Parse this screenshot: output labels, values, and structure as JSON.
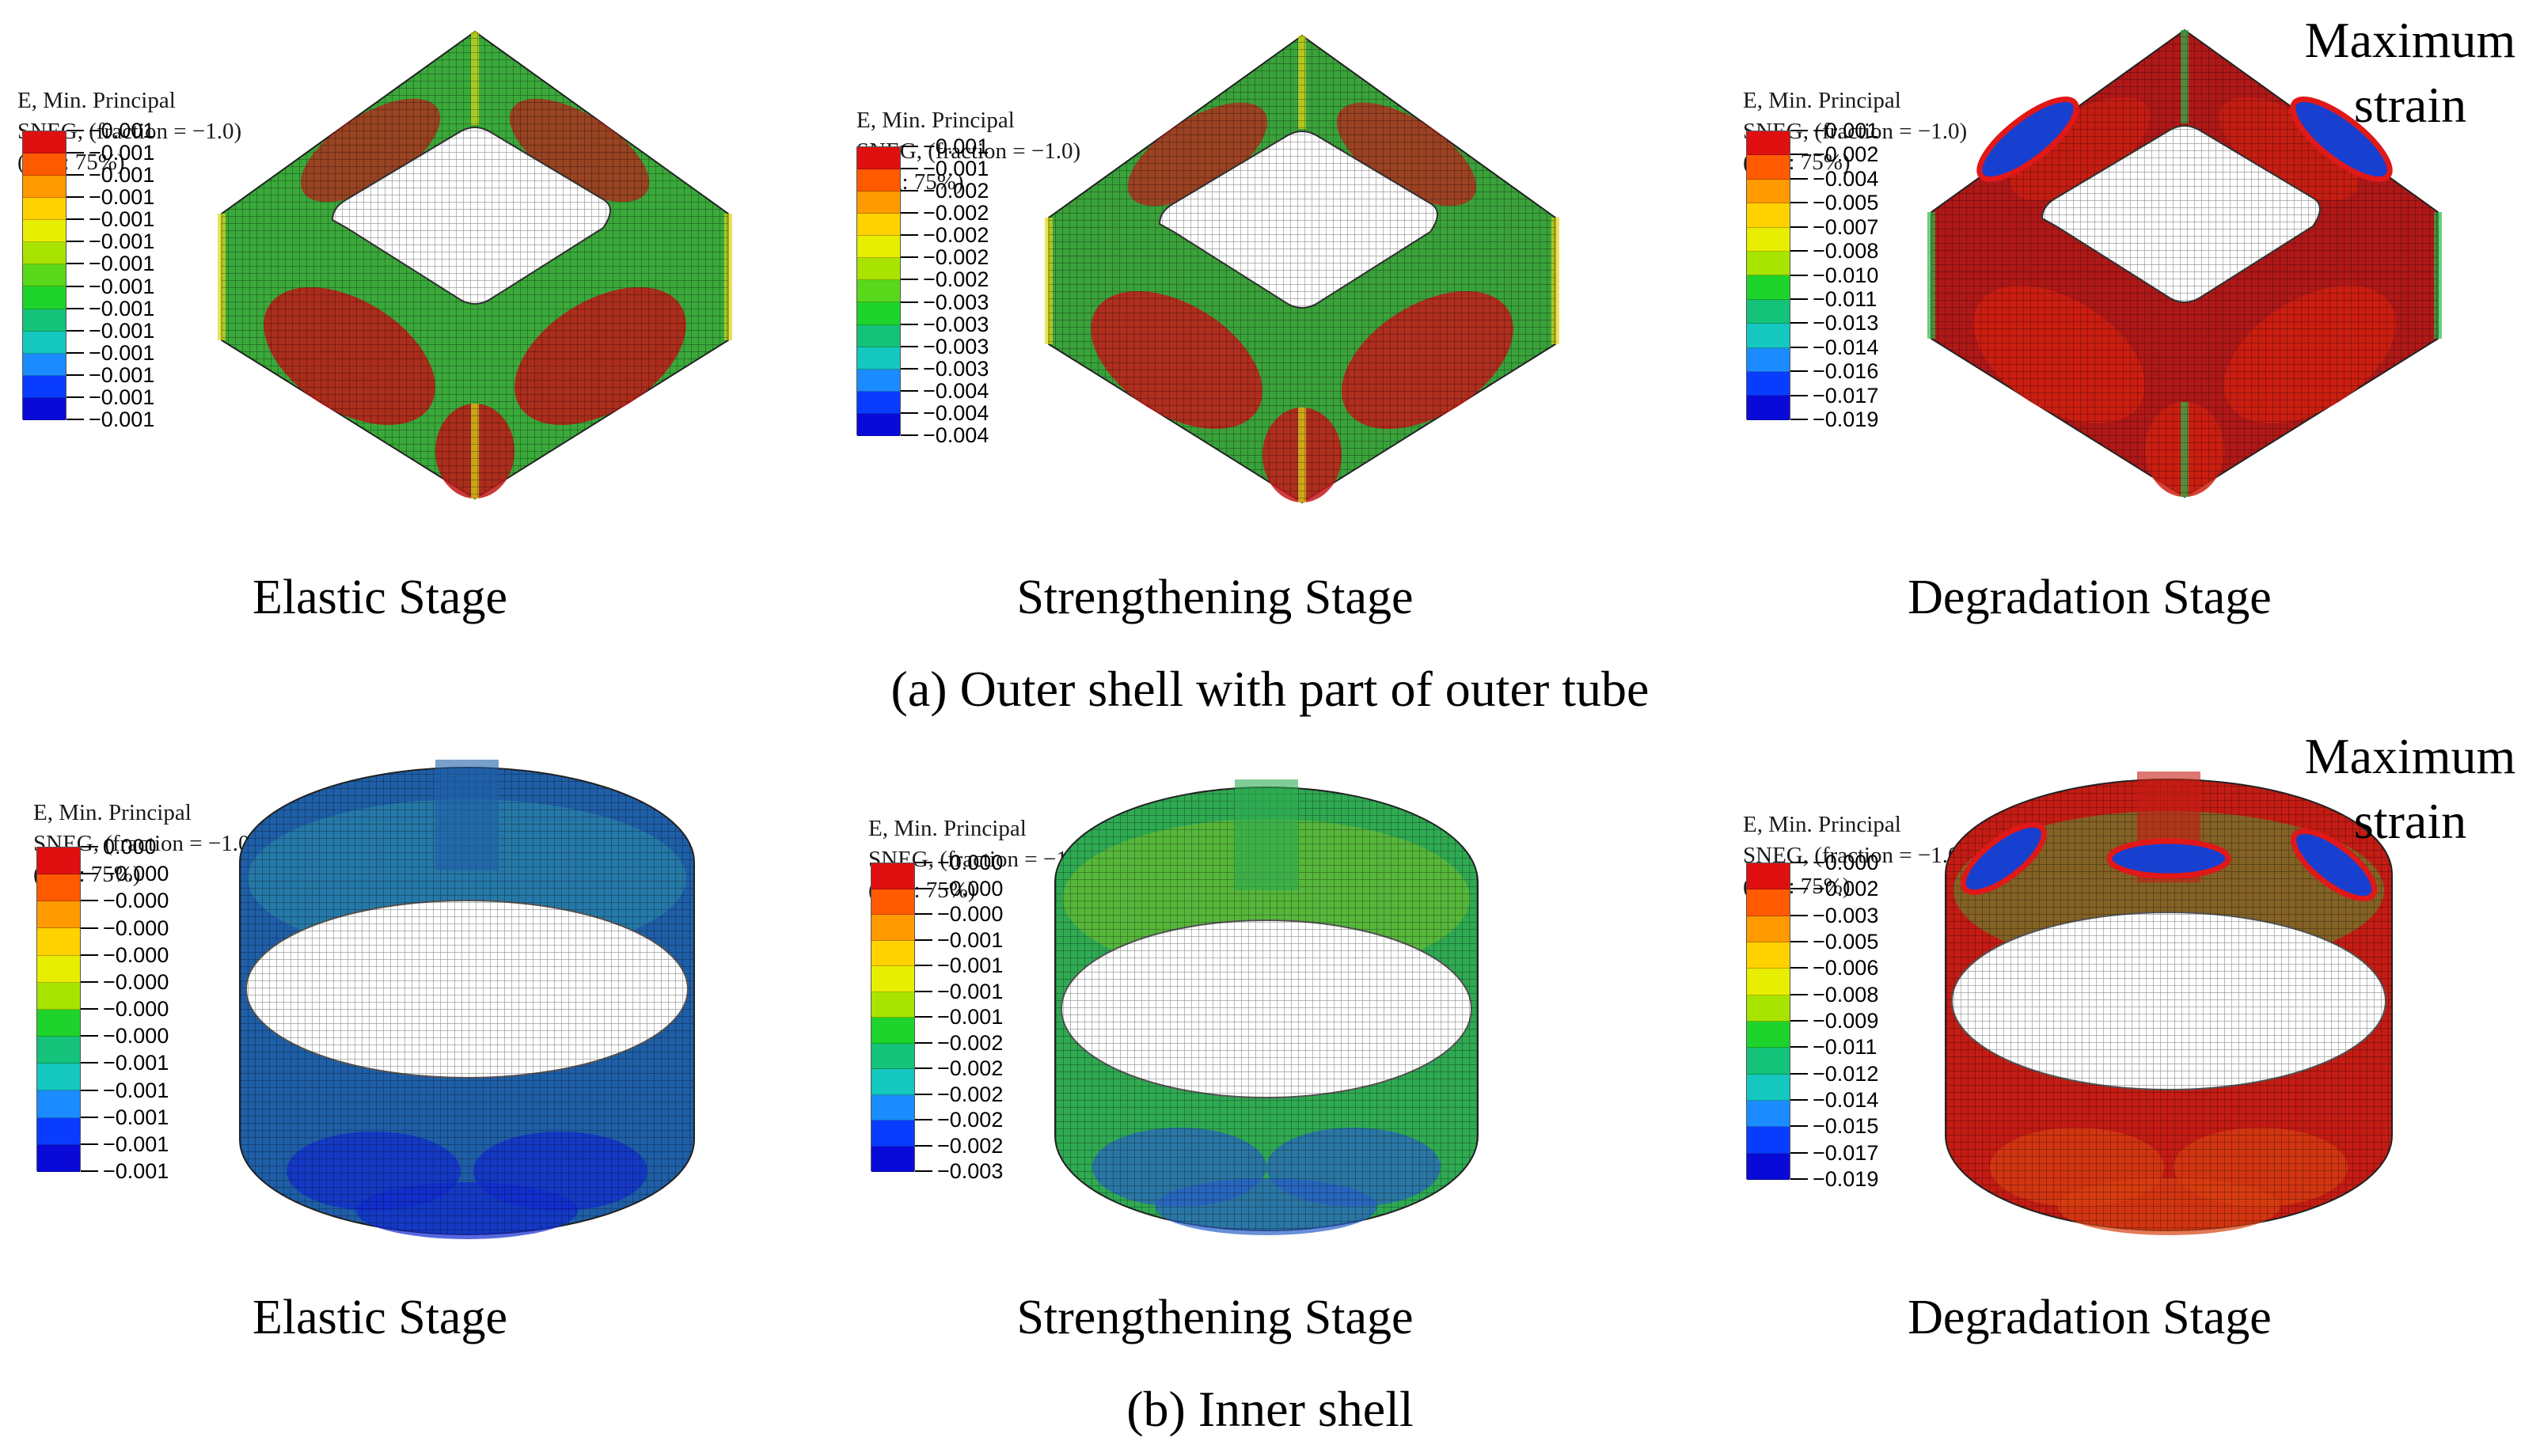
{
  "legend_header": [
    "E, Min. Principal",
    "SNEG, (fraction = −1.0)",
    "(Avg: 75%)"
  ],
  "colors": [
    "#e01010",
    "#ff5a00",
    "#ff9a00",
    "#ffd200",
    "#e8ee00",
    "#a8e400",
    "#5ad81c",
    "#1ed42c",
    "#14c27a",
    "#14c8c0",
    "#1a8cff",
    "#0a3cff",
    "#0a0ad8"
  ],
  "panels": {
    "a1": {
      "caption": "Elastic Stage",
      "legend_values": [
        "−0.001",
        "−0.001",
        "−0.001",
        "−0.001",
        "−0.001",
        "−0.001",
        "−0.001",
        "−0.001",
        "−0.001",
        "−0.001",
        "−0.001",
        "−0.001",
        "−0.001",
        "−0.001"
      ]
    },
    "a2": {
      "caption": "Strengthening Stage",
      "legend_values": [
        "−0.001",
        "−0.001",
        "−0.002",
        "−0.002",
        "−0.002",
        "−0.002",
        "−0.002",
        "−0.003",
        "−0.003",
        "−0.003",
        "−0.003",
        "−0.004",
        "−0.004",
        "−0.004"
      ]
    },
    "a3": {
      "caption": "Degradation Stage",
      "annotation": "Maximum\nstrain",
      "legend_values": [
        "−0.001",
        "−0.002",
        "−0.004",
        "−0.005",
        "−0.007",
        "−0.008",
        "−0.010",
        "−0.011",
        "−0.013",
        "−0.014",
        "−0.016",
        "−0.017",
        "−0.019"
      ]
    },
    "b1": {
      "caption": "Elastic Stage",
      "legend_values": [
        "0.000",
        "−0.000",
        "−0.000",
        "−0.000",
        "−0.000",
        "−0.000",
        "−0.000",
        "−0.000",
        "−0.001",
        "−0.001",
        "−0.001",
        "−0.001",
        "−0.001"
      ]
    },
    "b2": {
      "caption": "Strengthening Stage",
      "legend_values": [
        "−0.000",
        "−0.000",
        "−0.000",
        "−0.001",
        "−0.001",
        "−0.001",
        "−0.001",
        "−0.002",
        "−0.002",
        "−0.002",
        "−0.002",
        "−0.002",
        "−0.003"
      ]
    },
    "b3": {
      "caption": "Degradation Stage",
      "annotation": "Maximum\nstrain",
      "legend_values": [
        "−0.000",
        "−0.002",
        "−0.003",
        "−0.005",
        "−0.006",
        "−0.008",
        "−0.009",
        "−0.011",
        "−0.012",
        "−0.014",
        "−0.015",
        "−0.017",
        "−0.019"
      ]
    }
  },
  "sub_captions": {
    "a": "(a) Outer shell with part of outer tube",
    "b": "(b) Inner shell"
  }
}
